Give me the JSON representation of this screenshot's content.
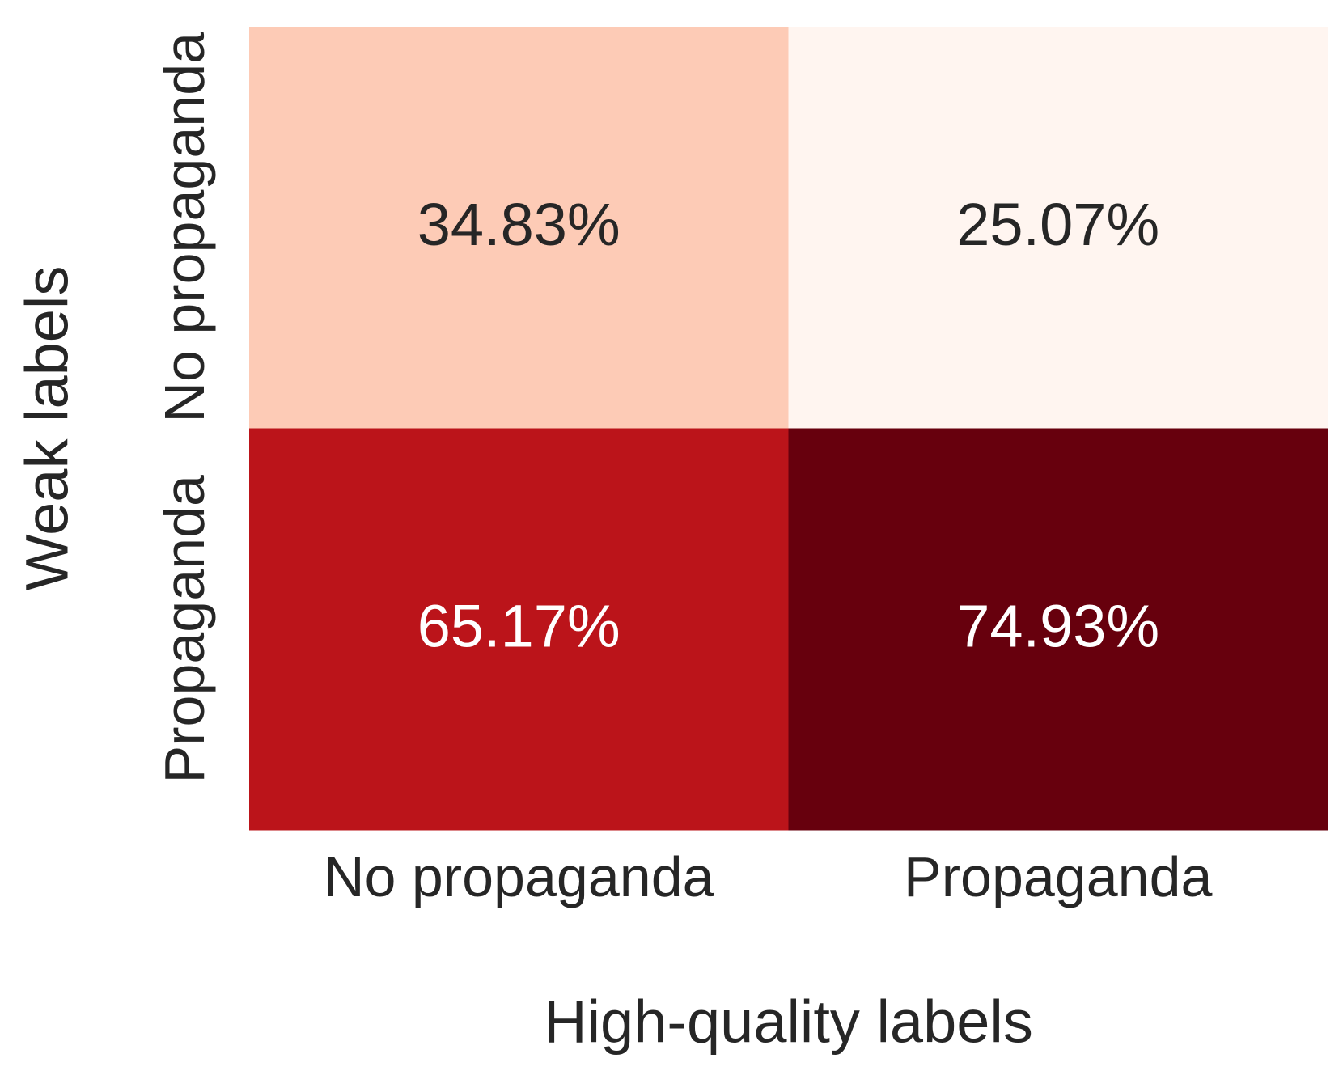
{
  "chart_data": {
    "type": "heatmap",
    "title": "",
    "xlabel": "High-quality labels",
    "ylabel": "Weak labels",
    "x_categories": [
      "No propaganda",
      "Propaganda"
    ],
    "y_categories": [
      "No propaganda",
      "Propaganda"
    ],
    "values": [
      [
        34.83,
        25.07
      ],
      [
        65.17,
        74.93
      ]
    ],
    "cell_labels": [
      [
        "34.83%",
        "25.07%"
      ],
      [
        "65.17%",
        "74.93%"
      ]
    ],
    "colormap": "Reds",
    "colors": {
      "light_text": "#ffffff",
      "dark_text": "#262626"
    },
    "legend": "none",
    "grid": false
  }
}
